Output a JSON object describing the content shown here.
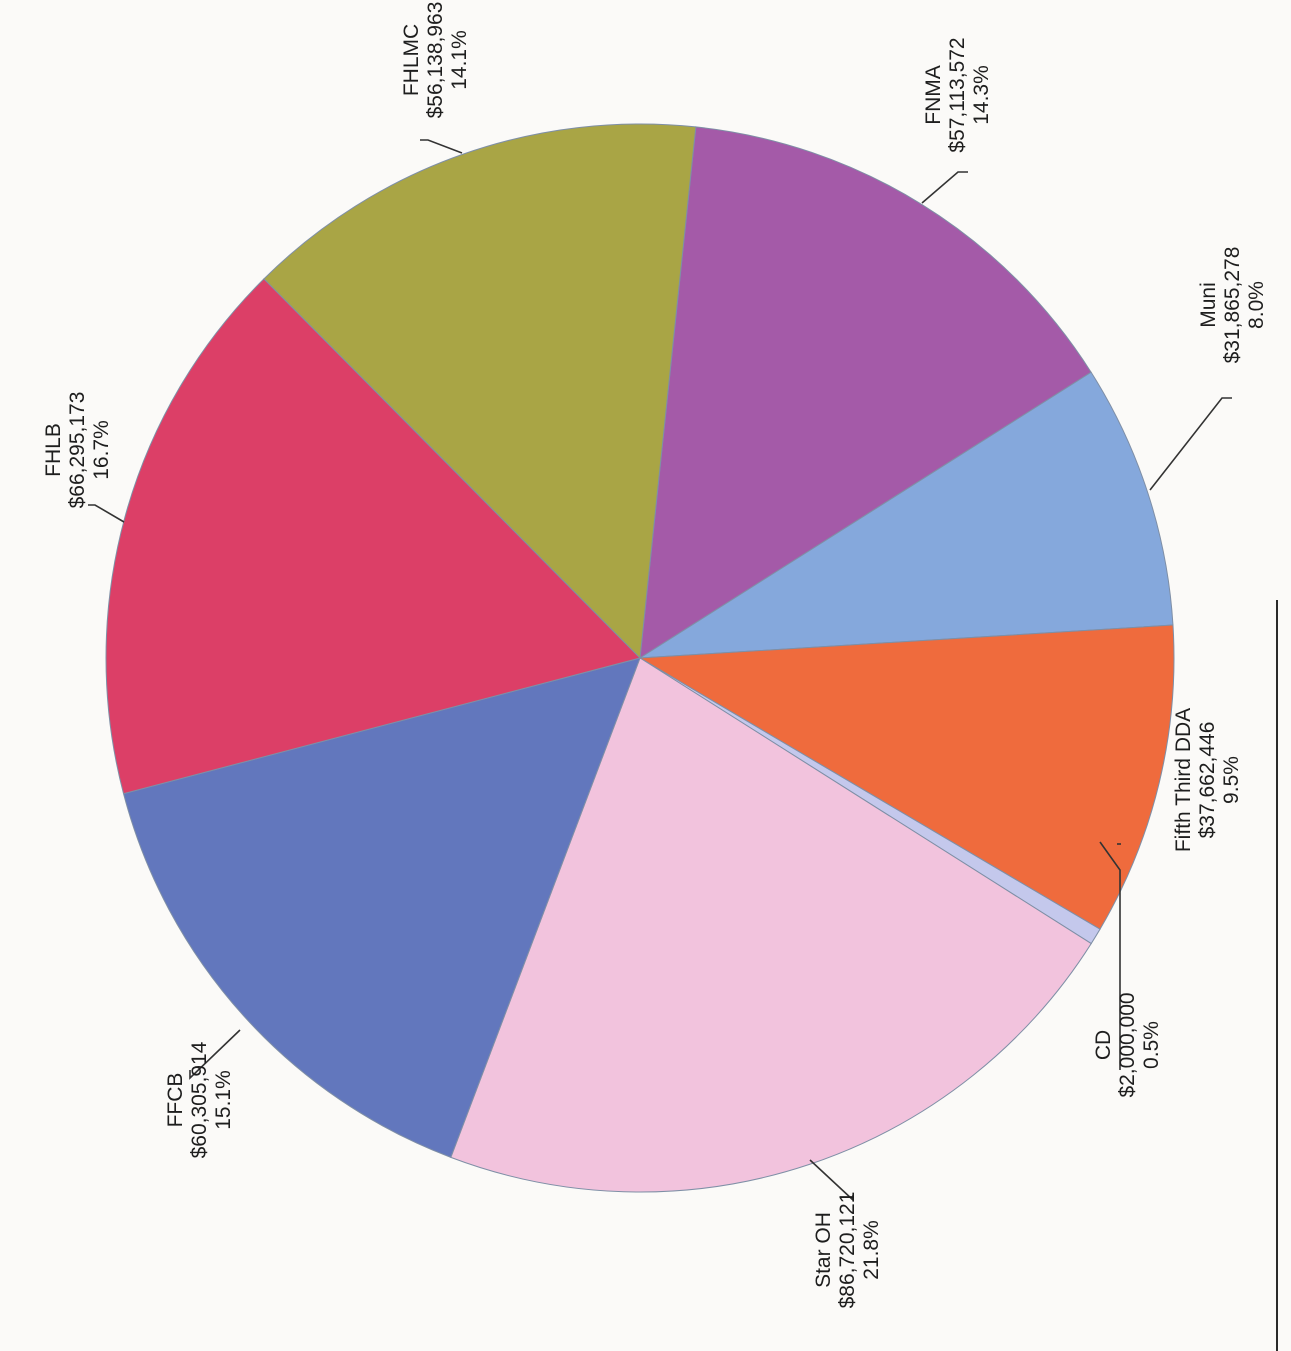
{
  "chart_data": {
    "type": "pie",
    "title": "",
    "orientation": "rotated 90 degrees counter-clockwise (page scanned sideways)",
    "slices": [
      {
        "name": "FNMA",
        "amount": "$57,113,572",
        "percent": "14.3%",
        "value": 57113572,
        "color": "#a45aa8"
      },
      {
        "name": "Muni",
        "amount": "$31,865,278",
        "percent": "8.0%",
        "value": 31865278,
        "color": "#85a8dc"
      },
      {
        "name": "Fifth Third DDA",
        "amount": "$37,662,446",
        "percent": "9.5%",
        "value": 37662446,
        "color": "#ef6b3d"
      },
      {
        "name": "CD",
        "amount": "$2,000,000",
        "percent": "0.5%",
        "value": 2000000,
        "color": "#c4c8ec"
      },
      {
        "name": "Star OH",
        "amount": "$86,720,121",
        "percent": "21.8%",
        "value": 86720121,
        "color": "#f2c3dd"
      },
      {
        "name": "FFCB",
        "amount": "$60,305,914",
        "percent": "15.1%",
        "value": 60305914,
        "color": "#6277bd"
      },
      {
        "name": "FHLB",
        "amount": "$66,295,173",
        "percent": "16.7%",
        "value": 66295173,
        "color": "#dc3f67"
      },
      {
        "name": "FHLMC",
        "amount": "$56,138,963",
        "percent": "14.1%",
        "value": 56138963,
        "color": "#a9a545"
      }
    ]
  }
}
